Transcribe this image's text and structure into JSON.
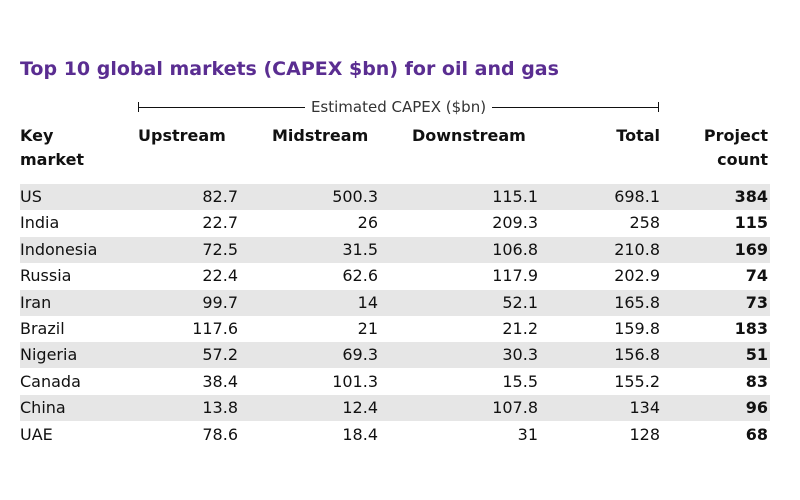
{
  "title": "Top 10 global markets (CAPEX $bn) for oil and gas",
  "table": {
    "group_header": "Estimated CAPEX ($bn)",
    "headers": [
      "Key market",
      "Upstream",
      "Midstream",
      "Downstream",
      "Total",
      "Project count"
    ],
    "rows": [
      [
        "US",
        "82.7",
        "500.3",
        "115.1",
        "698.1",
        "384"
      ],
      [
        "India",
        "22.7",
        "26",
        "209.3",
        "258",
        "115"
      ],
      [
        "Indonesia",
        "72.5",
        "31.5",
        "106.8",
        "210.8",
        "169"
      ],
      [
        "Russia",
        "22.4",
        "62.6",
        "117.9",
        "202.9",
        "74"
      ],
      [
        "Iran",
        "99.7",
        "14",
        "52.1",
        "165.8",
        "73"
      ],
      [
        "Brazil",
        "117.6",
        "21",
        "21.2",
        "159.8",
        "183"
      ],
      [
        "Nigeria",
        "57.2",
        "69.3",
        "30.3",
        "156.8",
        "51"
      ],
      [
        "Canada",
        "38.4",
        "101.3",
        "15.5",
        "155.2",
        "83"
      ],
      [
        "China",
        "13.8",
        "12.4",
        "107.8",
        "134",
        "96"
      ],
      [
        "UAE",
        "78.6",
        "18.4",
        "31",
        "128",
        "68"
      ]
    ]
  }
}
